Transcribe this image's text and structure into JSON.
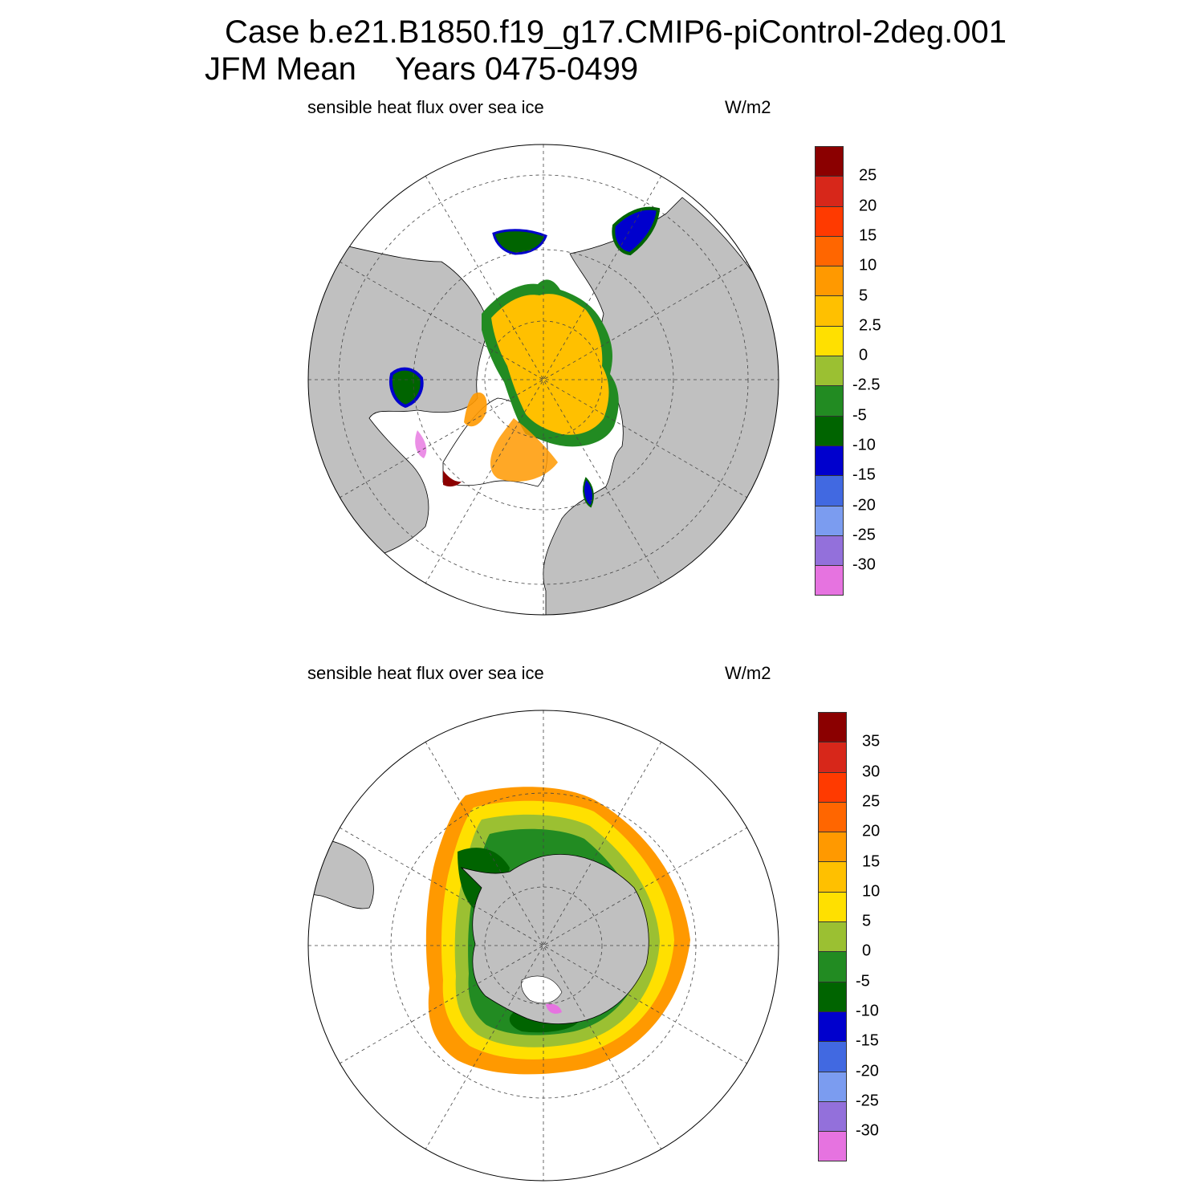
{
  "title": {
    "line1": "Case b.e21.B1850.f19_g17.CMIP6-piControl-2deg.001",
    "season": "JFM Mean",
    "years": "Years 0475-0499"
  },
  "panels": [
    {
      "hemisphere": "north",
      "label": "sensible heat flux over sea ice",
      "units": "W/m2",
      "colorbar": {
        "colors": [
          "#8b0000",
          "#d7271a",
          "#ff3a00",
          "#ff6600",
          "#ff9900",
          "#ffc000",
          "#ffe000",
          "#9bc032",
          "#228b22",
          "#006400",
          "#0000cd",
          "#4169e1",
          "#7b9cf0",
          "#9370db",
          "#e673e0"
        ],
        "labels": [
          "25",
          "20",
          "15",
          "10",
          "5",
          "2.5",
          "0",
          "-2.5",
          "-5",
          "-10",
          "-15",
          "-20",
          "-25",
          "-30"
        ]
      }
    },
    {
      "hemisphere": "south",
      "label": "sensible heat flux over sea ice",
      "units": "W/m2",
      "colorbar": {
        "colors": [
          "#8b0000",
          "#d7271a",
          "#ff3a00",
          "#ff6600",
          "#ff9900",
          "#ffc000",
          "#ffe000",
          "#9bc032",
          "#228b22",
          "#006400",
          "#0000cd",
          "#4169e1",
          "#7b9cf0",
          "#9370db",
          "#e673e0"
        ],
        "labels": [
          "35",
          "30",
          "25",
          "20",
          "15",
          "10",
          "5",
          "0",
          "-5",
          "-10",
          "-15",
          "-20",
          "-25",
          "-30"
        ]
      }
    }
  ]
}
